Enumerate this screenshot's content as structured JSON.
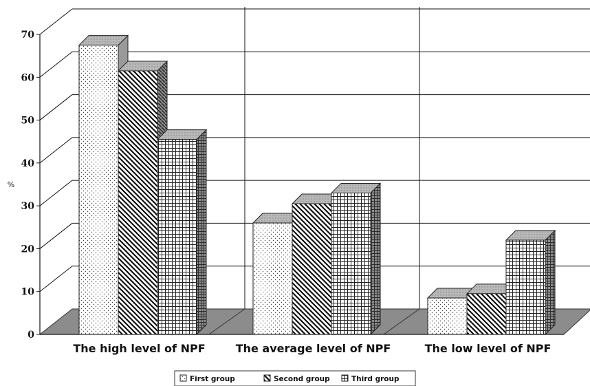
{
  "chart_data": {
    "type": "bar",
    "categories": [
      "The high level of NPF",
      "The average level of NPF",
      "The low level of NPF"
    ],
    "series": [
      {
        "name": "First group",
        "values": [
          67.5,
          26,
          8.5
        ]
      },
      {
        "name": "Second group",
        "values": [
          61.5,
          30.5,
          9.5
        ]
      },
      {
        "name": "Third group",
        "values": [
          45.5,
          33,
          22
        ]
      }
    ],
    "ylabel": "%",
    "ylim": [
      0,
      70
    ],
    "yticks": [
      0,
      10,
      20,
      30,
      40,
      50,
      60,
      70
    ],
    "grid": true,
    "legend": "bottom",
    "three_d": true
  }
}
